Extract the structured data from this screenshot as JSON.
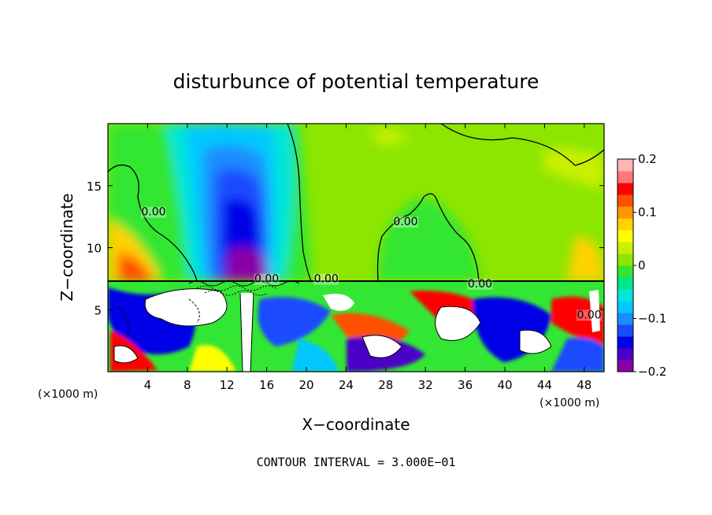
{
  "chart_data": {
    "type": "heatmap",
    "title": "disturbunce of potential temperature",
    "xlabel": "X−coordinate",
    "ylabel": "Z−coordinate",
    "x_unit_left": "(×1000 m)",
    "x_unit_right": "(×1000 m)",
    "note": "CONTOUR INTERVAL = 3.000E−01",
    "xlim": [
      0,
      50
    ],
    "ylim": [
      0,
      20
    ],
    "x_ticks": [
      4,
      8,
      12,
      16,
      20,
      24,
      28,
      32,
      36,
      40,
      44,
      48
    ],
    "x_tick_labels": [
      "4",
      "8",
      "12",
      "16",
      "20",
      "24",
      "28",
      "32",
      "36",
      "40",
      "44",
      "48"
    ],
    "y_ticks": [
      5,
      10,
      15
    ],
    "y_tick_labels": [
      "5",
      "10",
      "15"
    ],
    "colorbar": {
      "range": [
        -0.2,
        0.2
      ],
      "tick_values": [
        0.2,
        0.1,
        0,
        -0.1,
        -0.2
      ],
      "tick_labels": [
        "0.2",
        "0.1",
        "0",
        "−0.1",
        "−0.2"
      ],
      "colors": [
        "#8a00a8",
        "#4b00c8",
        "#0000e6",
        "#1a4bff",
        "#1a8cff",
        "#00c8ff",
        "#00e6d8",
        "#00e68c",
        "#33e633",
        "#8ce600",
        "#c8f000",
        "#ffff00",
        "#ffd200",
        "#ff9600",
        "#ff5000",
        "#ff0000",
        "#ff7878",
        "#ffb4b4"
      ]
    },
    "contour_labels": [
      {
        "text": "0.00",
        "x": 4.6,
        "y": 12.6
      },
      {
        "text": "0.00",
        "x": 30.0,
        "y": 11.8
      },
      {
        "text": "0.00",
        "x": 16.0,
        "y": 7.2
      },
      {
        "text": "0.00",
        "x": 22.0,
        "y": 7.2
      },
      {
        "text": "0.00",
        "x": 37.5,
        "y": 6.8
      },
      {
        "text": "0.00",
        "x": 48.5,
        "y": 4.3
      }
    ]
  }
}
